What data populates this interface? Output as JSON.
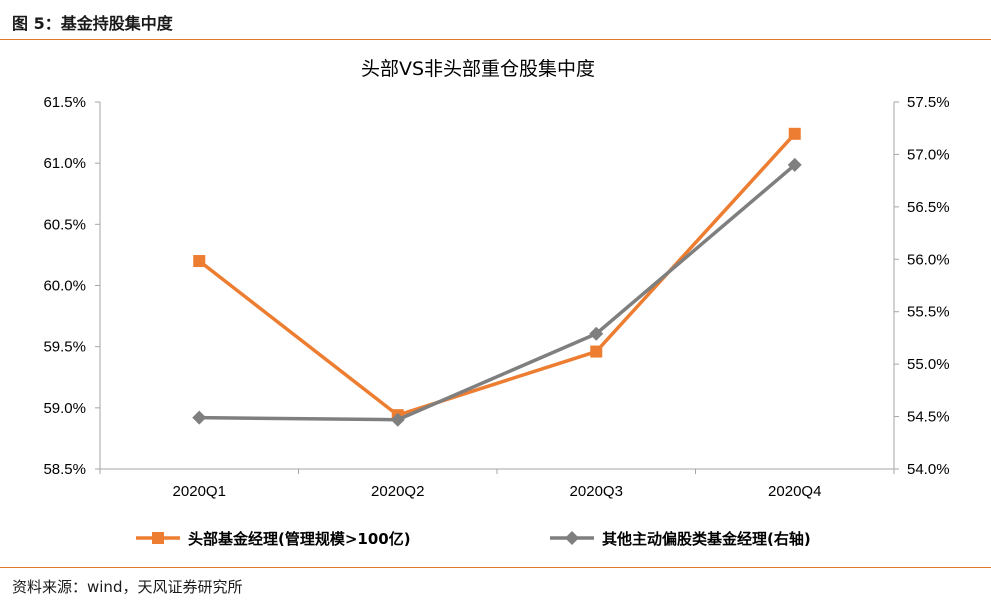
{
  "figure_label": "图 5：基金持股集中度",
  "source_note": "资料来源：wind，天风证券研究所",
  "chart_data": {
    "type": "line",
    "title": "头部VS非头部重仓股集中度",
    "categories": [
      "2020Q1",
      "2020Q2",
      "2020Q3",
      "2020Q4"
    ],
    "left_axis": {
      "ylim": [
        58.5,
        61.5
      ],
      "ticks": [
        "58.5%",
        "59.0%",
        "59.5%",
        "60.0%",
        "60.5%",
        "61.0%",
        "61.5%"
      ]
    },
    "right_axis": {
      "ylim": [
        54.0,
        57.5
      ],
      "ticks": [
        "54.0%",
        "54.5%",
        "55.0%",
        "55.5%",
        "56.0%",
        "56.5%",
        "57.0%",
        "57.5%"
      ]
    },
    "series": [
      {
        "name": "头部基金经理(管理规模>100亿)",
        "axis": "left",
        "marker": "square",
        "color": "#ED7D31",
        "values": [
          60.2,
          58.94,
          59.46,
          61.24
        ]
      },
      {
        "name": "其他主动偏股类基金经理(右轴)",
        "axis": "right",
        "marker": "diamond",
        "color": "#7F7F7F",
        "values": [
          54.49,
          54.47,
          55.29,
          56.9
        ]
      }
    ],
    "grid": false,
    "legend_position": "bottom"
  }
}
